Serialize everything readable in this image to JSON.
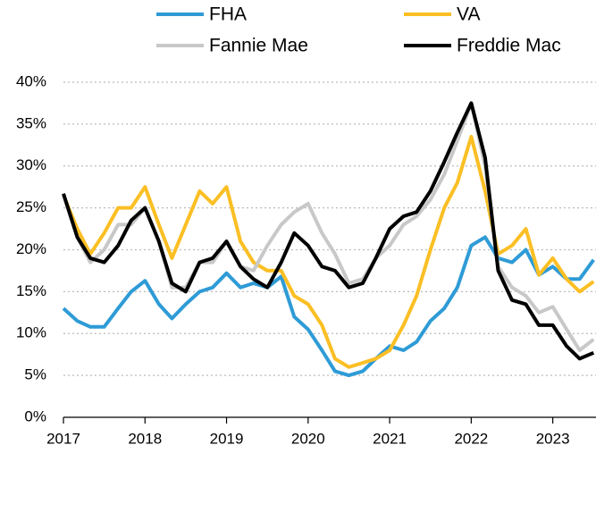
{
  "chart_data": {
    "type": "line",
    "x": [
      2017,
      2017.17,
      2017.33,
      2017.5,
      2017.67,
      2017.83,
      2018,
      2018.17,
      2018.33,
      2018.5,
      2018.67,
      2018.83,
      2019,
      2019.17,
      2019.33,
      2019.5,
      2019.67,
      2019.83,
      2020,
      2020.17,
      2020.33,
      2020.5,
      2020.67,
      2020.83,
      2021,
      2021.17,
      2021.33,
      2021.5,
      2021.67,
      2021.83,
      2022,
      2022.17,
      2022.33,
      2022.5,
      2022.67,
      2022.83,
      2023,
      2023.17,
      2023.33,
      2023.5
    ],
    "series": [
      {
        "name": "FHA",
        "color": "#2e9bd6",
        "values": [
          13.0,
          11.5,
          10.8,
          10.8,
          13.0,
          15.0,
          16.3,
          13.5,
          11.8,
          13.5,
          15.0,
          15.5,
          17.2,
          15.5,
          16.0,
          15.5,
          16.8,
          12.0,
          10.5,
          8.0,
          5.5,
          5.0,
          5.5,
          7.0,
          8.5,
          8.0,
          9.0,
          11.5,
          13.0,
          15.5,
          20.5,
          21.5,
          19.0,
          18.5,
          20.0,
          17.0,
          18.0,
          16.5,
          16.5,
          18.8
        ]
      },
      {
        "name": "VA",
        "color": "#fbbf24",
        "values": [
          26.5,
          22.5,
          19.5,
          22.0,
          25.0,
          25.0,
          27.5,
          23.0,
          19.0,
          23.0,
          27.0,
          25.5,
          27.5,
          21.0,
          18.5,
          17.5,
          17.5,
          14.5,
          13.5,
          11.0,
          7.0,
          6.0,
          6.5,
          7.0,
          8.0,
          11.0,
          14.5,
          20.0,
          25.0,
          28.0,
          33.5,
          27.0,
          19.5,
          20.5,
          22.5,
          17.0,
          19.0,
          16.5,
          15.0,
          16.2
        ]
      },
      {
        "name": "Fannie Mae",
        "color": "#c8c8c8",
        "values": [
          26.5,
          21.5,
          18.5,
          20.0,
          23.0,
          23.0,
          25.0,
          21.0,
          15.5,
          15.5,
          18.5,
          18.5,
          21.0,
          18.0,
          17.5,
          20.5,
          23.0,
          24.5,
          25.5,
          22.0,
          19.5,
          16.0,
          16.5,
          19.0,
          20.5,
          23.0,
          24.0,
          26.0,
          29.0,
          33.0,
          37.5,
          30.0,
          18.0,
          15.5,
          14.5,
          12.5,
          13.2,
          10.5,
          8.0,
          9.3
        ]
      },
      {
        "name": "Freddie Mac",
        "color": "#000000",
        "values": [
          26.7,
          21.5,
          19.0,
          18.5,
          20.5,
          23.5,
          25.0,
          21.0,
          16.0,
          15.0,
          18.5,
          19.0,
          21.0,
          18.0,
          16.5,
          15.5,
          18.5,
          22.0,
          20.5,
          18.0,
          17.5,
          15.5,
          16.0,
          19.0,
          22.5,
          24.0,
          24.5,
          27.0,
          30.5,
          34.0,
          37.5,
          31.0,
          17.5,
          14.0,
          13.5,
          11.0,
          11.0,
          8.5,
          7.0,
          7.7
        ]
      }
    ],
    "xlim": [
      2017,
      2023.53
    ],
    "xticks": [
      2017,
      2018,
      2019,
      2020,
      2021,
      2022,
      2023
    ],
    "ylim": [
      0,
      40
    ],
    "yticks": [
      {
        "value": 0,
        "label": "0%"
      },
      {
        "value": 5,
        "label": "5%"
      },
      {
        "value": 10,
        "label": "10%"
      },
      {
        "value": 15,
        "label": "15%"
      },
      {
        "value": 20,
        "label": "20%"
      },
      {
        "value": 25,
        "label": "25%"
      },
      {
        "value": 30,
        "label": "30%"
      },
      {
        "value": 35,
        "label": "35%"
      },
      {
        "value": 40,
        "label": "40%"
      }
    ],
    "grid": true,
    "legend": "top"
  }
}
